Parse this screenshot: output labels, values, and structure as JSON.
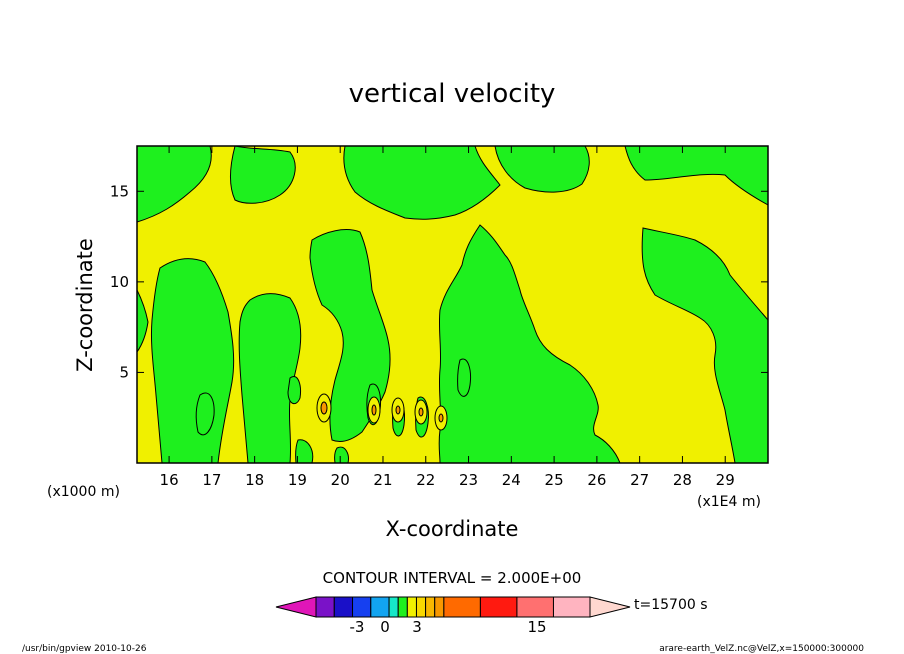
{
  "chart_data": {
    "type": "heatmap",
    "title": "vertical velocity",
    "xlabel": "X-coordinate",
    "ylabel": "Z-coordinate",
    "x_range": [
      152500,
      300000
    ],
    "y_range": [
      0,
      17500
    ],
    "x_ticks": [
      16,
      17,
      18,
      19,
      20,
      21,
      22,
      23,
      24,
      25,
      26,
      27,
      28,
      29
    ],
    "y_ticks": [
      5,
      10,
      15
    ],
    "x_unit_label": "(x1E4 m)",
    "y_unit_label": "(x1000 m)",
    "contour_interval": "CONTOUR INTERVAL = 2.000E+00",
    "colorbar": {
      "levels": [
        -11,
        -9,
        -7,
        -5,
        -3,
        -2,
        -1,
        0,
        1,
        2,
        3,
        5,
        7,
        9,
        11,
        15,
        17
      ],
      "colors": [
        "#e016b8",
        "#7a12c8",
        "#1a10c8",
        "#1640f0",
        "#12a4f0",
        "#16e8c8",
        "#1ef01e",
        "#f0f000",
        "#f8d800",
        "#f8b800",
        "#f89800",
        "#ff6a00",
        "#ff1a10",
        "#ff7070",
        "#ffb4c0",
        "#ffd8d0"
      ],
      "tick_labels": [
        "-3",
        "0",
        "3",
        "15"
      ],
      "time_label": "t=15700 s"
    },
    "field_colors": {
      "positive": "#f0f000",
      "negative": "#1ef01e",
      "contour": "#000000"
    }
  },
  "footer": {
    "left": "/usr/bin/gpview  2010-10-26",
    "right": "arare-earth_VelZ.nc@VelZ,x=150000:300000"
  }
}
